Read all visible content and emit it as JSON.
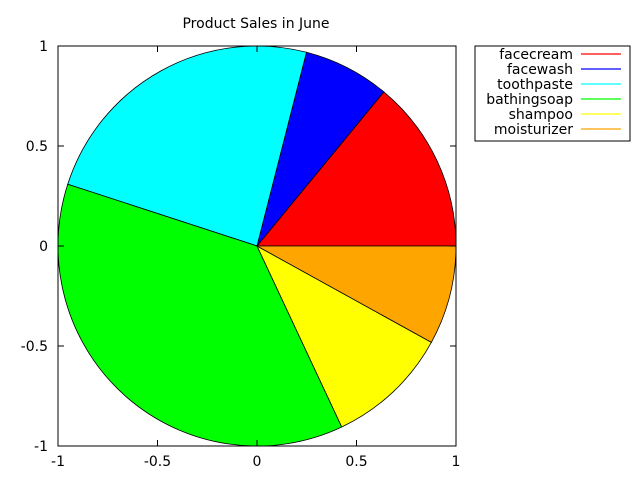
{
  "chart_data": {
    "type": "pie",
    "title": "Product Sales in June",
    "xlim": [
      -1,
      1
    ],
    "ylim": [
      -1,
      1
    ],
    "x_ticks": [
      "-1",
      "-0.5",
      "0",
      "0.5",
      "1"
    ],
    "y_ticks": [
      "1",
      "0.5",
      "0",
      "-0.5",
      "-1"
    ],
    "legend_position": "outside top-right",
    "slices": [
      {
        "label": "facecream",
        "value": 14,
        "color": "#ff0000"
      },
      {
        "label": "facewash",
        "value": 7,
        "color": "#0000ff"
      },
      {
        "label": "toothpaste",
        "value": 24,
        "color": "#00ffff"
      },
      {
        "label": "bathingsoap",
        "value": 37,
        "color": "#00ff00"
      },
      {
        "label": "shampoo",
        "value": 10,
        "color": "#ffff00"
      },
      {
        "label": "moisturizer",
        "value": 8,
        "color": "#ffa500"
      }
    ]
  }
}
